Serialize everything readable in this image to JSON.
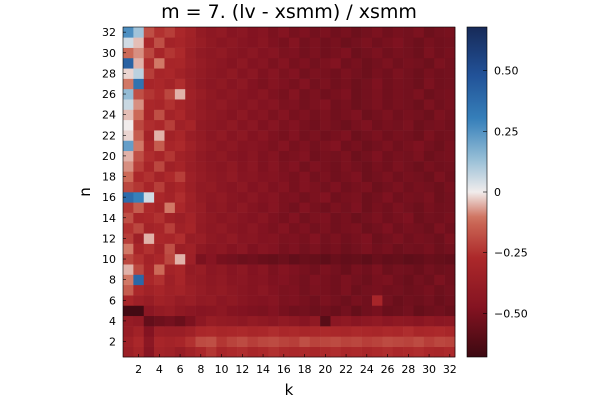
{
  "chart_data": {
    "type": "heatmap",
    "title": "m = 7. (lv - xsmm) / xsmm",
    "xlabel": "k",
    "ylabel": "n",
    "x": [
      1,
      2,
      3,
      4,
      5,
      6,
      7,
      8,
      9,
      10,
      11,
      12,
      13,
      14,
      15,
      16,
      17,
      18,
      19,
      20,
      21,
      22,
      23,
      24,
      25,
      26,
      27,
      28,
      29,
      30,
      31,
      32
    ],
    "y": [
      1,
      2,
      3,
      4,
      5,
      6,
      7,
      8,
      9,
      10,
      11,
      12,
      13,
      14,
      15,
      16,
      17,
      18,
      19,
      20,
      21,
      22,
      23,
      24,
      25,
      26,
      27,
      28,
      29,
      30,
      31,
      32
    ],
    "xticks": [
      2,
      4,
      6,
      8,
      10,
      12,
      14,
      16,
      18,
      20,
      22,
      24,
      26,
      28,
      30,
      32
    ],
    "yticks": [
      2,
      4,
      6,
      8,
      10,
      12,
      14,
      16,
      18,
      20,
      22,
      24,
      26,
      28,
      30,
      32
    ],
    "xlim": [
      0.5,
      32.5
    ],
    "ylim": [
      0.5,
      32.5
    ],
    "colorbar": {
      "colormap": "diverging red-white-blue (balance)",
      "clim": [
        -0.68,
        0.68
      ],
      "ticks": [
        0.5,
        0.25,
        0,
        -0.25,
        -0.5
      ],
      "tick_labels": [
        "0.50",
        "0.25",
        "0",
        "−0.25",
        "−0.50"
      ],
      "low_color": "#3c0911",
      "mid_color": "#f1ecec",
      "high_color": "#172a58"
    },
    "values": [
      [
        -0.36,
        -0.31,
        -0.46,
        -0.32,
        -0.34,
        -0.38,
        -0.33,
        -0.28,
        -0.24,
        -0.3,
        -0.27,
        -0.26,
        -0.29,
        -0.27,
        -0.25,
        -0.27,
        -0.28,
        -0.27,
        -0.29,
        -0.27,
        -0.26,
        -0.28,
        -0.27,
        -0.29,
        -0.27,
        -0.26,
        -0.28,
        -0.27,
        -0.26,
        -0.28,
        -0.29,
        -0.27
      ],
      [
        -0.34,
        -0.28,
        -0.44,
        -0.3,
        -0.32,
        -0.3,
        -0.25,
        -0.19,
        -0.18,
        -0.24,
        -0.21,
        -0.19,
        -0.22,
        -0.2,
        -0.19,
        -0.21,
        -0.22,
        -0.18,
        -0.21,
        -0.2,
        -0.19,
        -0.21,
        -0.2,
        -0.22,
        -0.21,
        -0.19,
        -0.2,
        -0.21,
        -0.19,
        -0.22,
        -0.2,
        -0.21
      ],
      [
        -0.38,
        -0.33,
        -0.48,
        -0.36,
        -0.37,
        -0.37,
        -0.34,
        -0.28,
        -0.27,
        -0.29,
        -0.28,
        -0.27,
        -0.29,
        -0.28,
        -0.26,
        -0.28,
        -0.27,
        -0.29,
        -0.28,
        -0.27,
        -0.28,
        -0.29,
        -0.27,
        -0.28,
        -0.29,
        -0.27,
        -0.28,
        -0.26,
        -0.29,
        -0.28,
        -0.27,
        -0.29
      ],
      [
        -0.39,
        -0.41,
        -0.57,
        -0.54,
        -0.52,
        -0.55,
        -0.5,
        -0.43,
        -0.38,
        -0.4,
        -0.41,
        -0.43,
        -0.4,
        -0.42,
        -0.44,
        -0.41,
        -0.43,
        -0.46,
        -0.42,
        -0.6,
        -0.44,
        -0.42,
        -0.45,
        -0.43,
        -0.41,
        -0.44,
        -0.42,
        -0.43,
        -0.45,
        -0.42,
        -0.44,
        -0.43
      ],
      [
        -0.66,
        -0.66,
        -0.44,
        -0.4,
        -0.38,
        -0.42,
        -0.44,
        -0.46,
        -0.45,
        -0.43,
        -0.47,
        -0.48,
        -0.49,
        -0.5,
        -0.48,
        -0.51,
        -0.53,
        -0.52,
        -0.54,
        -0.53,
        -0.55,
        -0.52,
        -0.56,
        -0.53,
        -0.51,
        -0.55,
        -0.54,
        -0.52,
        -0.56,
        -0.54,
        -0.53,
        -0.55
      ],
      [
        -0.3,
        -0.35,
        -0.38,
        -0.33,
        -0.35,
        -0.39,
        -0.37,
        -0.41,
        -0.4,
        -0.44,
        -0.42,
        -0.45,
        -0.47,
        -0.48,
        -0.46,
        -0.5,
        -0.49,
        -0.51,
        -0.53,
        -0.5,
        -0.52,
        -0.54,
        -0.51,
        -0.53,
        -0.3,
        -0.52,
        -0.55,
        -0.53,
        -0.54,
        -0.52,
        -0.55,
        -0.53
      ],
      [
        -0.15,
        -0.28,
        -0.33,
        -0.3,
        -0.34,
        -0.32,
        -0.36,
        -0.39,
        -0.42,
        -0.4,
        -0.43,
        -0.45,
        -0.47,
        -0.44,
        -0.48,
        -0.5,
        -0.49,
        -0.52,
        -0.5,
        -0.51,
        -0.53,
        -0.5,
        -0.54,
        -0.52,
        -0.51,
        -0.53,
        -0.52,
        -0.54,
        -0.53,
        -0.51,
        -0.54,
        -0.52
      ],
      [
        -0.1,
        0.4,
        -0.28,
        -0.25,
        -0.35,
        -0.3,
        -0.38,
        -0.4,
        -0.43,
        -0.41,
        -0.45,
        -0.44,
        -0.47,
        -0.46,
        -0.49,
        -0.48,
        -0.5,
        -0.52,
        -0.49,
        -0.51,
        -0.53,
        -0.5,
        -0.52,
        -0.54,
        -0.51,
        -0.5,
        -0.53,
        -0.55,
        -0.52,
        -0.54,
        -0.5,
        -0.53
      ],
      [
        -0.05,
        -0.2,
        -0.3,
        -0.12,
        -0.32,
        -0.29,
        -0.4,
        -0.38,
        -0.44,
        -0.42,
        -0.46,
        -0.43,
        -0.48,
        -0.45,
        -0.5,
        -0.47,
        -0.49,
        -0.51,
        -0.53,
        -0.5,
        -0.52,
        -0.55,
        -0.51,
        -0.53,
        -0.5,
        -0.54,
        -0.52,
        -0.53,
        -0.55,
        -0.52,
        -0.54,
        -0.53
      ],
      [
        -0.2,
        -0.25,
        -0.32,
        -0.28,
        -0.2,
        -0.05,
        -0.35,
        -0.5,
        -0.46,
        -0.51,
        -0.52,
        -0.54,
        -0.53,
        -0.55,
        -0.56,
        -0.54,
        -0.57,
        -0.55,
        -0.56,
        -0.58,
        -0.55,
        -0.57,
        -0.56,
        -0.58,
        -0.55,
        -0.57,
        -0.56,
        -0.58,
        -0.57,
        -0.55,
        -0.56,
        -0.57
      ],
      [
        -0.1,
        -0.3,
        -0.25,
        -0.32,
        -0.18,
        -0.36,
        -0.34,
        -0.42,
        -0.45,
        -0.43,
        -0.47,
        -0.44,
        -0.49,
        -0.46,
        -0.48,
        -0.51,
        -0.49,
        -0.52,
        -0.5,
        -0.53,
        -0.51,
        -0.54,
        -0.52,
        -0.5,
        -0.53,
        -0.51,
        -0.54,
        -0.52,
        -0.53,
        -0.51,
        -0.54,
        -0.52
      ],
      [
        -0.22,
        -0.35,
        -0.05,
        -0.28,
        -0.3,
        -0.26,
        -0.38,
        -0.37,
        -0.42,
        -0.44,
        -0.41,
        -0.46,
        -0.45,
        -0.48,
        -0.47,
        -0.5,
        -0.49,
        -0.51,
        -0.48,
        -0.52,
        -0.5,
        -0.53,
        -0.51,
        -0.49,
        -0.54,
        -0.52,
        -0.5,
        -0.53,
        -0.51,
        -0.52,
        -0.54,
        -0.5
      ],
      [
        -0.25,
        -0.2,
        -0.32,
        -0.3,
        -0.22,
        -0.34,
        -0.31,
        -0.4,
        -0.43,
        -0.41,
        -0.45,
        -0.47,
        -0.44,
        -0.48,
        -0.5,
        -0.47,
        -0.51,
        -0.49,
        -0.52,
        -0.5,
        -0.53,
        -0.51,
        -0.5,
        -0.54,
        -0.52,
        -0.49,
        -0.53,
        -0.51,
        -0.52,
        -0.54,
        -0.5,
        -0.53
      ],
      [
        -0.18,
        -0.3,
        -0.28,
        -0.25,
        -0.33,
        -0.36,
        -0.32,
        -0.39,
        -0.42,
        -0.45,
        -0.43,
        -0.46,
        -0.48,
        -0.45,
        -0.49,
        -0.51,
        -0.48,
        -0.52,
        -0.5,
        -0.49,
        -0.53,
        -0.51,
        -0.54,
        -0.52,
        -0.5,
        -0.53,
        -0.51,
        -0.49,
        -0.54,
        -0.52,
        -0.53,
        -0.51
      ],
      [
        -0.24,
        -0.15,
        -0.27,
        -0.31,
        -0.1,
        -0.28,
        -0.35,
        -0.38,
        -0.44,
        -0.42,
        -0.46,
        -0.43,
        -0.47,
        -0.49,
        -0.46,
        -0.5,
        -0.52,
        -0.48,
        -0.51,
        -0.53,
        -0.5,
        -0.52,
        -0.49,
        -0.54,
        -0.51,
        -0.53,
        -0.5,
        -0.52,
        -0.54,
        -0.51,
        -0.53,
        -0.52
      ],
      [
        0.38,
        0.3,
        0.05,
        -0.28,
        -0.32,
        -0.26,
        -0.34,
        -0.4,
        -0.43,
        -0.41,
        -0.45,
        -0.47,
        -0.44,
        -0.48,
        -0.46,
        -0.5,
        -0.49,
        -0.52,
        -0.5,
        -0.48,
        -0.53,
        -0.51,
        -0.5,
        -0.54,
        -0.52,
        -0.49,
        -0.53,
        -0.51,
        -0.52,
        -0.5,
        -0.54,
        -0.52
      ],
      [
        -0.2,
        -0.24,
        -0.3,
        -0.22,
        -0.33,
        -0.29,
        -0.36,
        -0.41,
        -0.4,
        -0.44,
        -0.46,
        -0.43,
        -0.48,
        -0.45,
        -0.49,
        -0.47,
        -0.51,
        -0.48,
        -0.5,
        -0.52,
        -0.49,
        -0.53,
        -0.51,
        -0.5,
        -0.54,
        -0.52,
        -0.5,
        -0.53,
        -0.51,
        -0.52,
        -0.54,
        -0.51
      ],
      [
        -0.12,
        -0.28,
        -0.25,
        -0.32,
        -0.27,
        -0.22,
        -0.35,
        -0.39,
        -0.42,
        -0.44,
        -0.41,
        -0.46,
        -0.45,
        -0.48,
        -0.47,
        -0.49,
        -0.51,
        -0.48,
        -0.52,
        -0.5,
        -0.53,
        -0.51,
        -0.49,
        -0.54,
        -0.52,
        -0.5,
        -0.53,
        -0.51,
        -0.52,
        -0.54,
        -0.5,
        -0.53
      ],
      [
        -0.08,
        -0.22,
        -0.3,
        -0.2,
        -0.34,
        -0.31,
        -0.37,
        -0.4,
        -0.43,
        -0.45,
        -0.42,
        -0.47,
        -0.44,
        -0.49,
        -0.46,
        -0.5,
        -0.48,
        -0.52,
        -0.49,
        -0.51,
        -0.53,
        -0.5,
        -0.52,
        -0.54,
        -0.51,
        -0.53,
        -0.5,
        -0.52,
        -0.54,
        -0.51,
        -0.53,
        -0.52
      ],
      [
        -0.05,
        -0.18,
        -0.26,
        -0.3,
        -0.24,
        -0.33,
        -0.36,
        -0.41,
        -0.44,
        -0.42,
        -0.46,
        -0.48,
        -0.45,
        -0.49,
        -0.47,
        -0.51,
        -0.5,
        -0.48,
        -0.53,
        -0.51,
        -0.52,
        -0.5,
        -0.54,
        -0.52,
        -0.49,
        -0.53,
        -0.51,
        -0.52,
        -0.5,
        -0.54,
        -0.52,
        -0.51
      ],
      [
        0.22,
        -0.1,
        -0.28,
        -0.15,
        -0.3,
        -0.27,
        -0.34,
        -0.39,
        -0.42,
        -0.45,
        -0.43,
        -0.47,
        -0.46,
        -0.48,
        -0.5,
        -0.47,
        -0.51,
        -0.49,
        -0.52,
        -0.5,
        -0.48,
        -0.53,
        -0.51,
        -0.54,
        -0.52,
        -0.5,
        -0.53,
        -0.51,
        -0.49,
        -0.52,
        -0.54,
        -0.51
      ],
      [
        -0.02,
        -0.15,
        -0.32,
        -0.05,
        -0.33,
        -0.29,
        -0.37,
        -0.4,
        -0.44,
        -0.41,
        -0.46,
        -0.43,
        -0.48,
        -0.45,
        -0.49,
        -0.51,
        -0.48,
        -0.52,
        -0.5,
        -0.53,
        -0.51,
        -0.49,
        -0.54,
        -0.52,
        -0.5,
        -0.53,
        -0.51,
        -0.52,
        -0.54,
        -0.5,
        -0.53,
        -0.52
      ],
      [
        0.0,
        -0.2,
        -0.26,
        -0.28,
        -0.22,
        -0.34,
        -0.31,
        -0.41,
        -0.43,
        -0.45,
        -0.42,
        -0.47,
        -0.44,
        -0.49,
        -0.46,
        -0.5,
        -0.48,
        -0.51,
        -0.53,
        -0.5,
        -0.52,
        -0.54,
        -0.51,
        -0.49,
        -0.53,
        -0.51,
        -0.52,
        -0.5,
        -0.54,
        -0.52,
        -0.51,
        -0.53
      ],
      [
        -0.04,
        -0.12,
        -0.3,
        -0.18,
        -0.32,
        -0.28,
        -0.36,
        -0.39,
        -0.42,
        -0.44,
        -0.47,
        -0.43,
        -0.48,
        -0.46,
        -0.5,
        -0.47,
        -0.51,
        -0.49,
        -0.52,
        -0.5,
        -0.53,
        -0.51,
        -0.49,
        -0.54,
        -0.52,
        -0.5,
        -0.53,
        -0.51,
        -0.52,
        -0.54,
        -0.5,
        -0.52
      ],
      [
        0.06,
        -0.08,
        -0.28,
        -0.3,
        -0.25,
        -0.31,
        -0.35,
        -0.4,
        -0.43,
        -0.41,
        -0.45,
        -0.47,
        -0.44,
        -0.48,
        -0.46,
        -0.5,
        -0.49,
        -0.52,
        -0.5,
        -0.48,
        -0.53,
        -0.51,
        -0.54,
        -0.52,
        -0.5,
        -0.53,
        -0.51,
        -0.52,
        -0.54,
        -0.5,
        -0.53,
        -0.51
      ],
      [
        0.14,
        -0.18,
        -0.24,
        -0.27,
        -0.2,
        -0.05,
        -0.34,
        -0.38,
        -0.42,
        -0.45,
        -0.43,
        -0.46,
        -0.48,
        -0.45,
        -0.49,
        -0.51,
        -0.47,
        -0.52,
        -0.5,
        -0.53,
        -0.51,
        -0.49,
        -0.54,
        -0.52,
        -0.5,
        -0.53,
        -0.51,
        -0.52,
        -0.5,
        -0.54,
        -0.52,
        -0.51
      ],
      [
        -0.1,
        0.35,
        -0.3,
        -0.28,
        -0.32,
        -0.26,
        -0.36,
        -0.41,
        -0.44,
        -0.42,
        -0.46,
        -0.43,
        -0.48,
        -0.5,
        -0.47,
        -0.49,
        -0.51,
        -0.48,
        -0.52,
        -0.5,
        -0.53,
        -0.51,
        -0.54,
        -0.52,
        -0.49,
        -0.53,
        -0.51,
        -0.52,
        -0.54,
        -0.5,
        -0.53,
        -0.52
      ],
      [
        -0.02,
        0.08,
        -0.22,
        -0.3,
        -0.28,
        -0.33,
        -0.37,
        -0.4,
        -0.43,
        -0.45,
        -0.42,
        -0.47,
        -0.44,
        -0.49,
        -0.46,
        -0.5,
        -0.48,
        -0.52,
        -0.5,
        -0.51,
        -0.53,
        -0.5,
        -0.52,
        -0.54,
        -0.51,
        -0.53,
        -0.5,
        -0.52,
        -0.54,
        -0.51,
        -0.53,
        -0.52
      ],
      [
        0.42,
        -0.05,
        -0.26,
        -0.1,
        -0.3,
        -0.29,
        -0.35,
        -0.39,
        -0.42,
        -0.44,
        -0.47,
        -0.43,
        -0.48,
        -0.46,
        -0.5,
        -0.47,
        -0.51,
        -0.49,
        -0.52,
        -0.5,
        -0.48,
        -0.53,
        -0.51,
        -0.54,
        -0.52,
        -0.5,
        -0.53,
        -0.51,
        -0.52,
        -0.54,
        -0.5,
        -0.52
      ],
      [
        -0.12,
        -0.08,
        -0.2,
        -0.3,
        -0.24,
        -0.27,
        -0.36,
        -0.41,
        -0.43,
        -0.41,
        -0.45,
        -0.47,
        -0.44,
        -0.48,
        -0.46,
        -0.5,
        -0.49,
        -0.52,
        -0.5,
        -0.53,
        -0.51,
        -0.49,
        -0.54,
        -0.52,
        -0.5,
        -0.53,
        -0.51,
        -0.52,
        -0.54,
        -0.5,
        -0.53,
        -0.51
      ],
      [
        0.05,
        -0.04,
        -0.28,
        -0.18,
        -0.32,
        -0.3,
        -0.34,
        -0.38,
        -0.42,
        -0.45,
        -0.43,
        -0.46,
        -0.48,
        -0.45,
        -0.49,
        -0.51,
        -0.47,
        -0.52,
        -0.5,
        -0.53,
        -0.51,
        -0.54,
        -0.52,
        -0.5,
        -0.53,
        -0.51,
        -0.49,
        -0.52,
        -0.54,
        -0.51,
        -0.53,
        -0.52
      ],
      [
        0.26,
        0.12,
        -0.18,
        -0.25,
        -0.22,
        -0.28,
        -0.33,
        -0.4,
        -0.43,
        -0.41,
        -0.46,
        -0.44,
        -0.48,
        -0.46,
        -0.5,
        -0.47,
        -0.51,
        -0.49,
        -0.52,
        -0.5,
        -0.53,
        -0.51,
        -0.54,
        -0.52,
        -0.5,
        -0.53,
        -0.51,
        -0.52,
        -0.5,
        -0.54,
        -0.52,
        -0.51
      ]
    ]
  }
}
